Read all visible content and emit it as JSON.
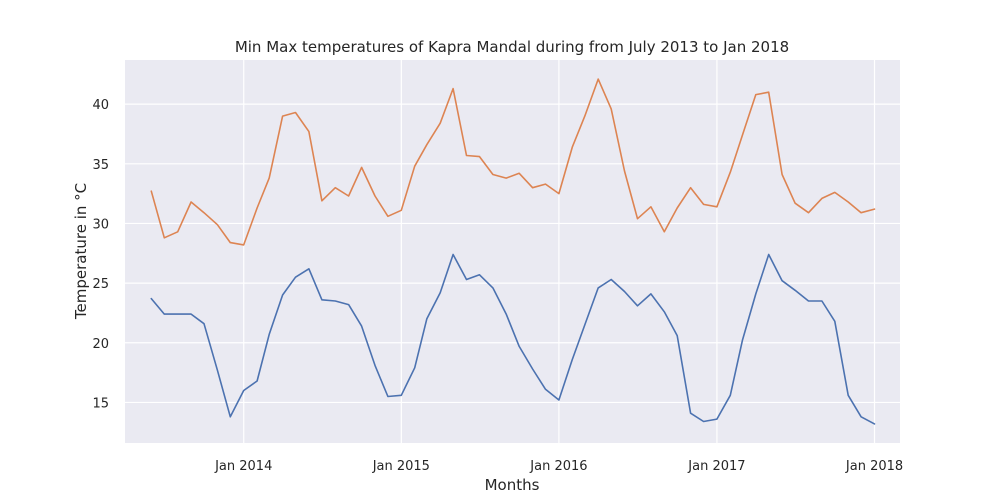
{
  "chart_data": {
    "type": "line",
    "title": "Min Max temperatures of Kapra Mandal during from July 2013 to Jan 2018",
    "xlabel": "Months",
    "ylabel": "Temperature in °C",
    "grid": true,
    "background_color": "#eaeaf2",
    "x_ticks": [
      {
        "label": "Jan 2014",
        "date": "2014-01-01"
      },
      {
        "label": "Jan 2015",
        "date": "2015-01-01"
      },
      {
        "label": "Jan 2016",
        "date": "2016-01-01"
      },
      {
        "label": "Jan 2017",
        "date": "2017-01-01"
      },
      {
        "label": "Jan 2018",
        "date": "2018-01-01"
      }
    ],
    "y_ticks": [
      15,
      20,
      25,
      30,
      35,
      40
    ],
    "ylim": [
      11.6,
      43.7
    ],
    "xlim": [
      "2013-04-01",
      "2018-03-01"
    ],
    "x": [
      "2013-06-01",
      "2013-07-01",
      "2013-08-01",
      "2013-09-01",
      "2013-10-01",
      "2013-11-01",
      "2013-12-01",
      "2014-01-01",
      "2014-02-01",
      "2014-03-01",
      "2014-04-01",
      "2014-05-01",
      "2014-06-01",
      "2014-07-01",
      "2014-08-01",
      "2014-09-01",
      "2014-10-01",
      "2014-11-01",
      "2014-12-01",
      "2015-01-01",
      "2015-02-01",
      "2015-03-01",
      "2015-04-01",
      "2015-05-01",
      "2015-06-01",
      "2015-07-01",
      "2015-08-01",
      "2015-09-01",
      "2015-10-01",
      "2015-11-01",
      "2015-12-01",
      "2016-01-01",
      "2016-02-01",
      "2016-03-01",
      "2016-04-01",
      "2016-05-01",
      "2016-06-01",
      "2016-07-01",
      "2016-08-01",
      "2016-09-01",
      "2016-10-01",
      "2016-11-01",
      "2016-12-01",
      "2017-01-01",
      "2017-02-01",
      "2017-03-01",
      "2017-04-01",
      "2017-05-01",
      "2017-06-01",
      "2017-07-01",
      "2017-08-01",
      "2017-09-01",
      "2017-10-01",
      "2017-11-01",
      "2017-12-01",
      "2018-01-01"
    ],
    "series": [
      {
        "color": "#dd8452",
        "values": [
          32.7,
          28.8,
          29.3,
          31.8,
          30.9,
          29.9,
          28.4,
          28.2,
          31.3,
          33.8,
          39.0,
          39.3,
          37.7,
          31.9,
          33.0,
          32.3,
          34.7,
          32.3,
          30.6,
          31.1,
          34.8,
          36.6,
          38.4,
          41.3,
          35.7,
          35.6,
          34.1,
          33.8,
          34.2,
          33.0,
          33.3,
          32.5,
          36.4,
          39.0,
          42.1,
          39.6,
          34.4,
          30.4,
          31.4,
          29.3,
          31.3,
          33.0,
          31.6,
          31.4,
          34.3,
          37.4,
          40.8,
          41.0,
          34.1,
          31.7,
          30.9,
          32.1,
          32.6,
          31.8,
          30.9,
          31.2
        ]
      },
      {
        "color": "#4c72b0",
        "values": [
          23.7,
          22.4,
          22.4,
          22.4,
          21.6,
          17.7,
          13.8,
          16.0,
          16.8,
          20.7,
          24.0,
          25.5,
          26.2,
          23.6,
          23.5,
          23.2,
          21.4,
          18.1,
          15.5,
          15.6,
          17.9,
          22.0,
          24.2,
          27.4,
          25.3,
          25.7,
          24.6,
          22.4,
          19.7,
          17.8,
          16.1,
          15.2,
          18.6,
          21.5,
          24.6,
          25.3,
          24.3,
          23.1,
          24.1,
          22.6,
          20.6,
          14.1,
          13.4,
          13.6,
          15.6,
          20.2,
          24.1,
          27.4,
          25.2,
          24.4,
          23.5,
          23.5,
          21.8,
          15.6,
          13.8,
          13.2
        ]
      }
    ]
  }
}
